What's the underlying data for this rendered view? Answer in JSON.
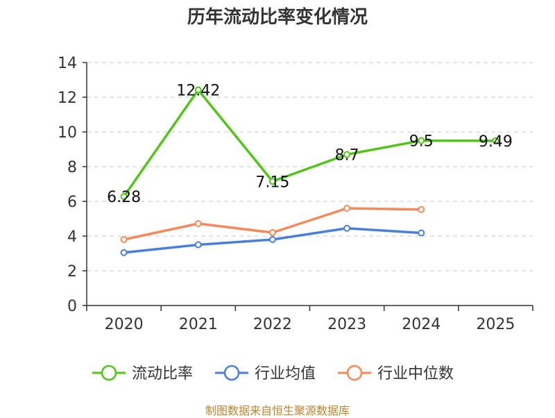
{
  "chart_data": {
    "type": "line",
    "title": "历年流动比率变化情况",
    "categories": [
      "2020",
      "2021",
      "2022",
      "2023",
      "2024",
      "2025"
    ],
    "ylim": [
      0,
      14
    ],
    "yticks": [
      0,
      2,
      4,
      6,
      8,
      10,
      12,
      14
    ],
    "grid": true,
    "legend_position": "bottom",
    "series": [
      {
        "name": "流动比率",
        "color": "#52c41a",
        "values": [
          6.28,
          12.42,
          7.15,
          8.7,
          9.5,
          9.49
        ],
        "labels": [
          "6.28",
          "12.42",
          "7.15",
          "8.7",
          "9.5",
          "9.49"
        ]
      },
      {
        "name": "行业均值",
        "color": "#4a7fd9",
        "values": [
          3.05,
          3.5,
          3.8,
          4.45,
          4.18,
          null
        ]
      },
      {
        "name": "行业中位数",
        "color": "#f5895b",
        "values": [
          3.8,
          4.72,
          4.2,
          5.6,
          5.53,
          null
        ]
      }
    ]
  },
  "source": "制图数据来自恒生聚源数据库"
}
